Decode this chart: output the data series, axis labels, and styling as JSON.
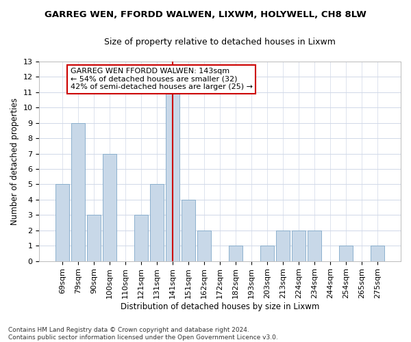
{
  "title": "GARREG WEN, FFORDD WALWEN, LIXWM, HOLYWELL, CH8 8LW",
  "subtitle": "Size of property relative to detached houses in Lixwm",
  "xlabel": "Distribution of detached houses by size in Lixwm",
  "ylabel": "Number of detached properties",
  "categories": [
    "69sqm",
    "79sqm",
    "90sqm",
    "100sqm",
    "110sqm",
    "121sqm",
    "131sqm",
    "141sqm",
    "151sqm",
    "162sqm",
    "172sqm",
    "182sqm",
    "193sqm",
    "203sqm",
    "213sqm",
    "224sqm",
    "234sqm",
    "244sqm",
    "254sqm",
    "265sqm",
    "275sqm"
  ],
  "values": [
    5,
    9,
    3,
    7,
    0,
    3,
    5,
    11,
    4,
    2,
    0,
    1,
    0,
    1,
    2,
    2,
    2,
    0,
    1,
    0,
    1
  ],
  "bar_color": "#c8d8e8",
  "bar_edge_color": "#7fa8c8",
  "highlight_index": 7,
  "highlight_line_color": "#cc0000",
  "ylim": [
    0,
    13
  ],
  "yticks": [
    0,
    1,
    2,
    3,
    4,
    5,
    6,
    7,
    8,
    9,
    10,
    11,
    12,
    13
  ],
  "annotation_text": "GARREG WEN FFORDD WALWEN: 143sqm\n← 54% of detached houses are smaller (32)\n42% of semi-detached houses are larger (25) →",
  "annotation_box_color": "#ffffff",
  "annotation_box_edge": "#cc0000",
  "footnote": "Contains HM Land Registry data © Crown copyright and database right 2024.\nContains public sector information licensed under the Open Government Licence v3.0.",
  "bg_color": "#ffffff",
  "grid_color": "#d0d8e8",
  "title_fontsize": 9.5,
  "subtitle_fontsize": 9,
  "xlabel_fontsize": 8.5,
  "ylabel_fontsize": 8.5,
  "ann_fontsize": 8,
  "tick_fontsize": 8,
  "footnote_fontsize": 6.5
}
